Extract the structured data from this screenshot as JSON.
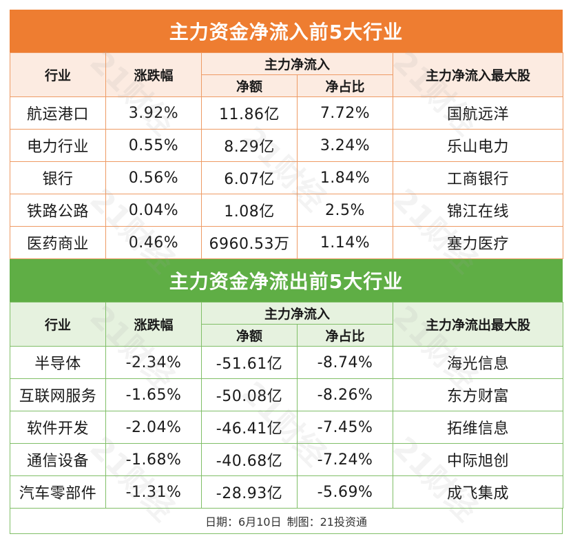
{
  "inflow": {
    "title": "主力资金净流入前5大行业",
    "headers": {
      "industry": "行业",
      "change": "涨跌幅",
      "main_net": "主力净流入",
      "net_amount": "净额",
      "net_ratio": "净占比",
      "top_stock": "主力净流入最大股"
    },
    "rows": [
      {
        "industry": "航运港口",
        "change": "3.92%",
        "net_amount": "11.86亿",
        "net_ratio": "7.72%",
        "top_stock": "国航远洋"
      },
      {
        "industry": "电力行业",
        "change": "0.55%",
        "net_amount": "8.29亿",
        "net_ratio": "3.24%",
        "top_stock": "乐山电力"
      },
      {
        "industry": "银行",
        "change": "0.56%",
        "net_amount": "6.07亿",
        "net_ratio": "1.84%",
        "top_stock": "工商银行"
      },
      {
        "industry": "铁路公路",
        "change": "0.04%",
        "net_amount": "1.08亿",
        "net_ratio": "2.5%",
        "top_stock": "锦江在线"
      },
      {
        "industry": "医药商业",
        "change": "0.46%",
        "net_amount": "6960.53万",
        "net_ratio": "1.14%",
        "top_stock": "塞力医疗"
      }
    ]
  },
  "outflow": {
    "title": "主力资金净流出前5大行业",
    "headers": {
      "industry": "行业",
      "change": "涨跌幅",
      "main_net": "主力净流入",
      "net_amount": "净额",
      "net_ratio": "净占比",
      "top_stock": "主力净流出最大股"
    },
    "rows": [
      {
        "industry": "半导体",
        "change": "-2.34%",
        "net_amount": "-51.61亿",
        "net_ratio": "-8.74%",
        "top_stock": "海光信息"
      },
      {
        "industry": "互联网服务",
        "change": "-1.65%",
        "net_amount": "-50.08亿",
        "net_ratio": "-8.26%",
        "top_stock": "东方财富"
      },
      {
        "industry": "软件开发",
        "change": "-2.04%",
        "net_amount": "-46.41亿",
        "net_ratio": "-7.45%",
        "top_stock": "拓维信息"
      },
      {
        "industry": "通信设备",
        "change": "-1.68%",
        "net_amount": "-40.68亿",
        "net_ratio": "-7.24%",
        "top_stock": "中际旭创"
      },
      {
        "industry": "汽车零部件",
        "change": "-1.31%",
        "net_amount": "-28.93亿",
        "net_ratio": "-5.69%",
        "top_stock": "成飞集成"
      }
    ]
  },
  "footer": {
    "date": "日期：6月10日",
    "credit": "制图：21投资通"
  },
  "watermark": "21财经",
  "colors": {
    "inflow_banner": "#ee7d31",
    "outflow_banner": "#5fae45"
  }
}
